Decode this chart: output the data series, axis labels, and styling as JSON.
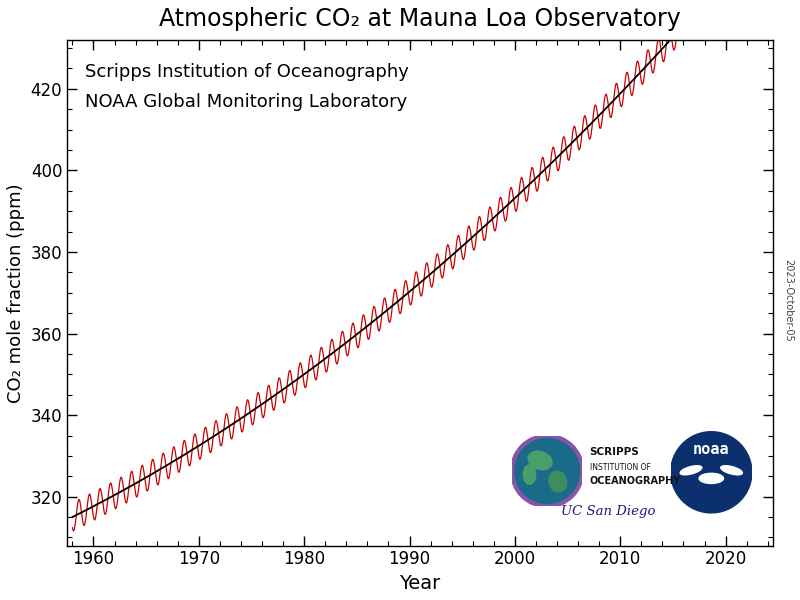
{
  "title": "Atmospheric CO₂ at Mauna Loa Observatory",
  "ylabel": "CO₂ mole fraction (ppm)",
  "xlabel": "Year",
  "text_line1": "Scripps Institution of Oceanography",
  "text_line2": "NOAA Global Monitoring Laboratory",
  "watermark": "2023-October-05",
  "xlim": [
    1957.5,
    2024.5
  ],
  "ylim": [
    308,
    432
  ],
  "xticks": [
    1960,
    1970,
    1980,
    1990,
    2000,
    2010,
    2020
  ],
  "yticks": [
    320,
    340,
    360,
    380,
    400,
    420
  ],
  "line_color_seasonal": "#CC0000",
  "line_color_trend": "#000000",
  "background_color": "#ffffff",
  "title_fontsize": 17,
  "label_fontsize": 13,
  "tick_fontsize": 12,
  "annotation_fontsize": 13
}
